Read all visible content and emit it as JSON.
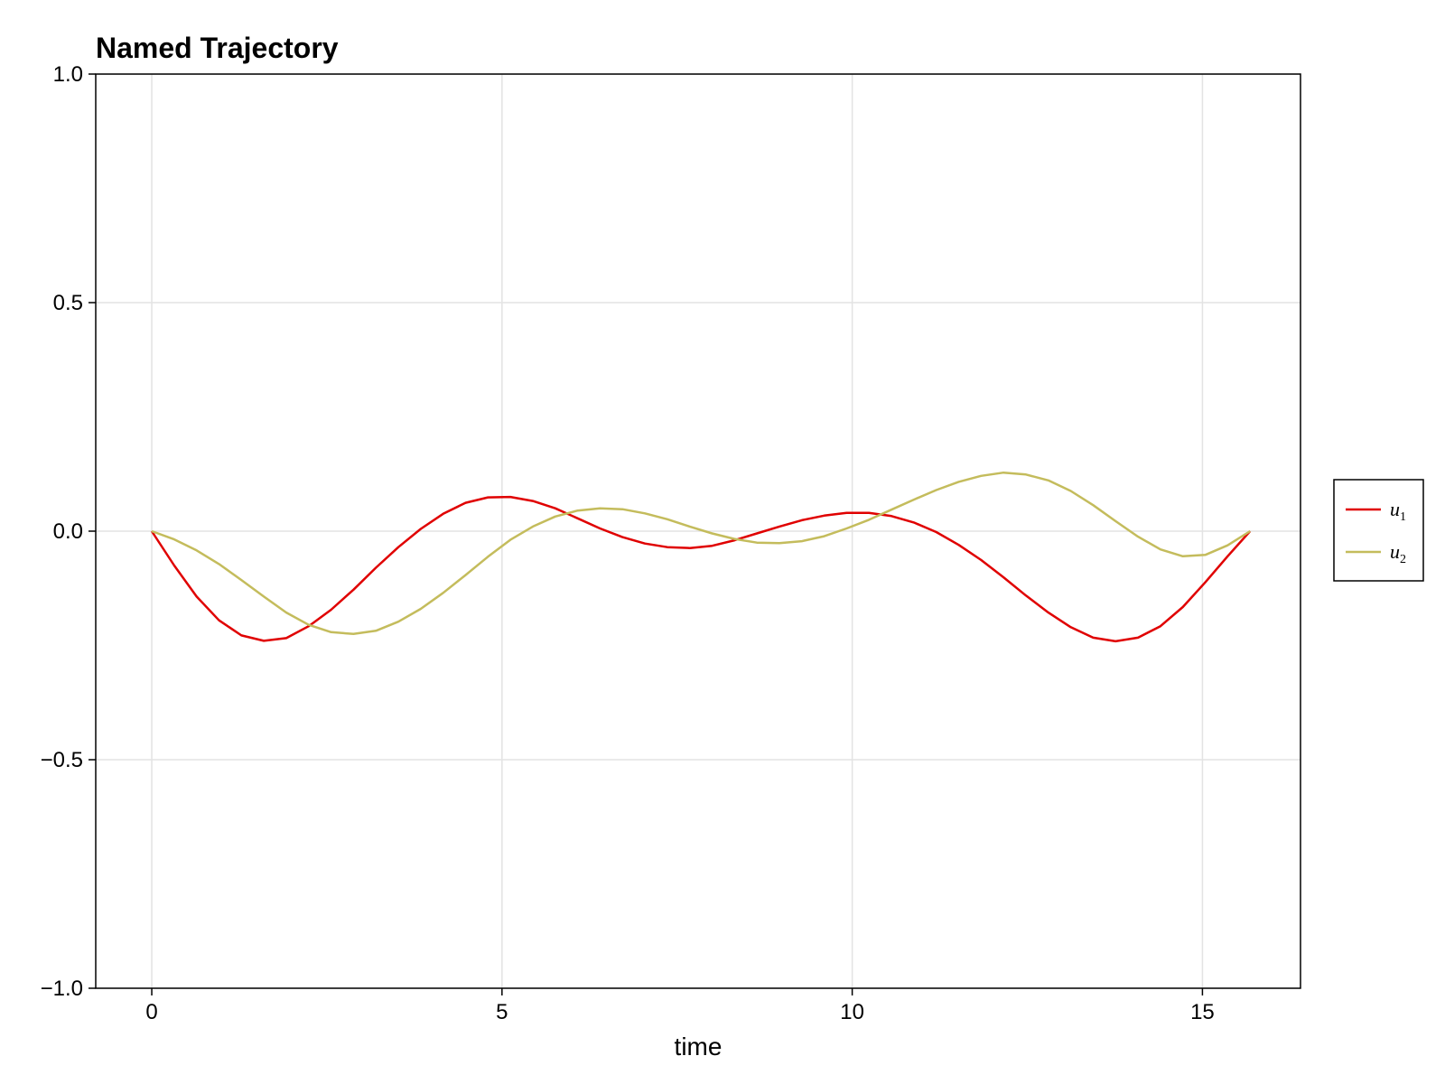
{
  "chart_data": {
    "type": "line",
    "title": "Named Trajectory",
    "xlabel": "time",
    "ylabel": "",
    "xlim": [
      -0.8,
      16.4
    ],
    "ylim": [
      -1.0,
      1.0
    ],
    "xticks": [
      0,
      5,
      10,
      15
    ],
    "xtick_labels": [
      "0",
      "5",
      "10",
      "15"
    ],
    "yticks": [
      -1.0,
      -0.5,
      0.0,
      0.5,
      1.0
    ],
    "ytick_labels": [
      "−1.0",
      "−0.5",
      "0.0",
      "0.5",
      "1.0"
    ],
    "grid": true,
    "legend_position": "right",
    "x": [
      0.0,
      0.32,
      0.64,
      0.96,
      1.28,
      1.6,
      1.92,
      2.24,
      2.56,
      2.88,
      3.2,
      3.52,
      3.84,
      4.16,
      4.48,
      4.8,
      5.12,
      5.44,
      5.76,
      6.08,
      6.4,
      6.72,
      7.04,
      7.36,
      7.68,
      8.0,
      8.32,
      8.64,
      8.96,
      9.28,
      9.6,
      9.92,
      10.24,
      10.56,
      10.88,
      11.2,
      11.52,
      11.84,
      12.16,
      12.48,
      12.8,
      13.12,
      13.44,
      13.76,
      14.08,
      14.4,
      14.72,
      15.04,
      15.36,
      15.68
    ],
    "series": [
      {
        "name": "u",
        "subscript": "1",
        "color": "#e00000",
        "values": [
          0.0,
          -0.075,
          -0.143,
          -0.195,
          -0.228,
          -0.24,
          -0.234,
          -0.208,
          -0.172,
          -0.128,
          -0.08,
          -0.035,
          0.005,
          0.038,
          0.062,
          0.074,
          0.075,
          0.066,
          0.05,
          0.028,
          0.006,
          -0.013,
          -0.027,
          -0.035,
          -0.037,
          -0.032,
          -0.02,
          -0.005,
          0.01,
          0.024,
          0.034,
          0.04,
          0.04,
          0.033,
          0.019,
          -0.002,
          -0.03,
          -0.063,
          -0.101,
          -0.141,
          -0.178,
          -0.21,
          -0.233,
          -0.241,
          -0.233,
          -0.208,
          -0.166,
          -0.112,
          -0.055,
          0.0
        ]
      },
      {
        "name": "u",
        "subscript": "2",
        "color": "#c4bc5c",
        "values": [
          0.0,
          -0.018,
          -0.042,
          -0.072,
          -0.107,
          -0.143,
          -0.178,
          -0.205,
          -0.221,
          -0.225,
          -0.218,
          -0.198,
          -0.17,
          -0.135,
          -0.096,
          -0.056,
          -0.019,
          0.01,
          0.032,
          0.045,
          0.05,
          0.048,
          0.039,
          0.026,
          0.01,
          -0.005,
          -0.017,
          -0.025,
          -0.026,
          -0.022,
          -0.011,
          0.006,
          0.025,
          0.047,
          0.069,
          0.09,
          0.108,
          0.121,
          0.128,
          0.124,
          0.111,
          0.088,
          0.057,
          0.022,
          -0.012,
          -0.04,
          -0.055,
          -0.052,
          -0.031,
          0.0
        ]
      }
    ]
  }
}
